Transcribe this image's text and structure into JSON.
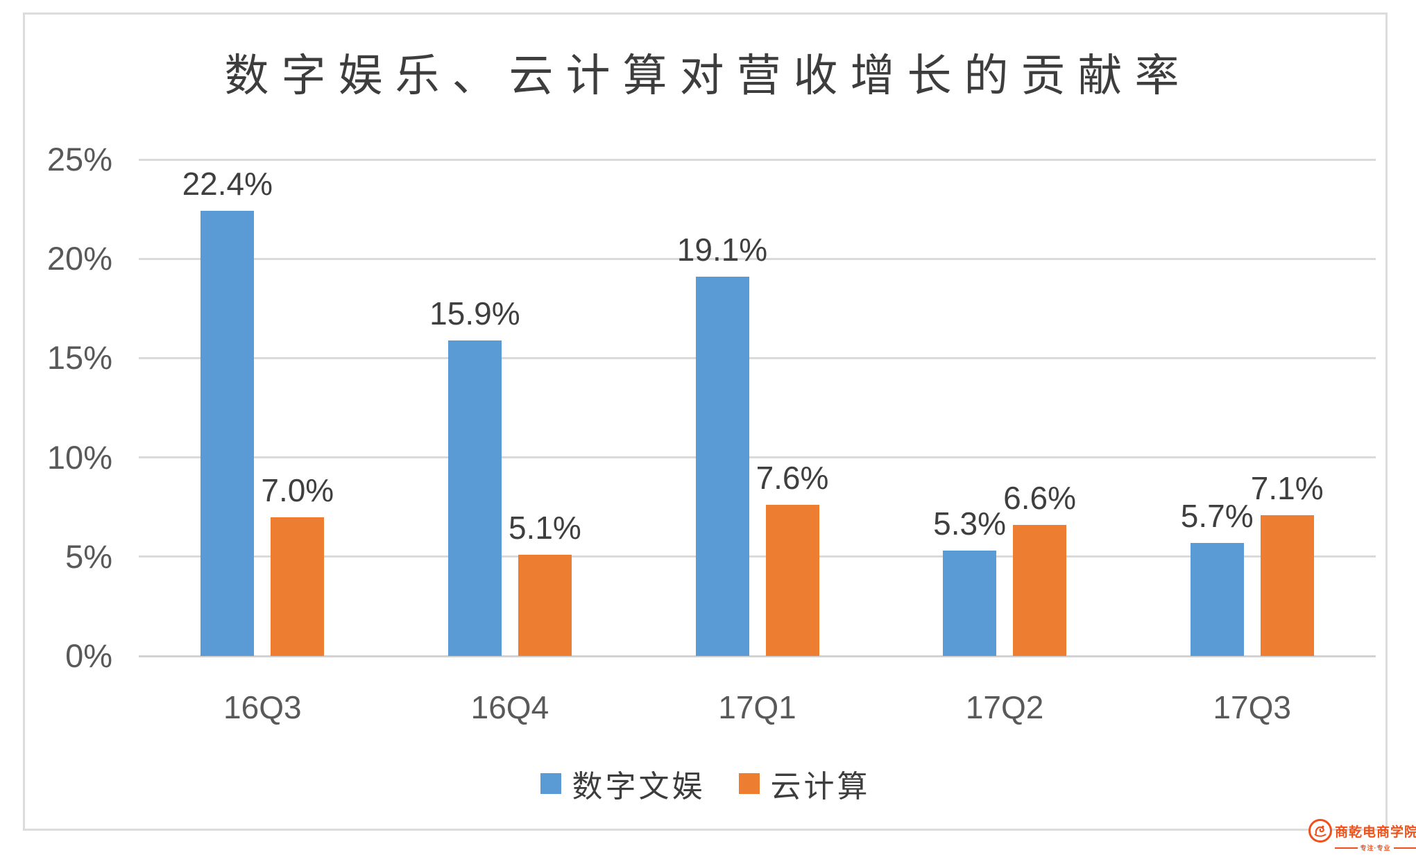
{
  "chart_data": {
    "type": "bar",
    "title": "数字娱乐、云计算对营收增长的贡献率",
    "categories": [
      "16Q3",
      "16Q4",
      "17Q1",
      "17Q2",
      "17Q3"
    ],
    "series": [
      {
        "name": "数字文娱",
        "color": "#5B9BD5",
        "values": [
          22.4,
          15.9,
          19.1,
          5.3,
          5.7
        ],
        "labels": [
          "22.4%",
          "15.9%",
          "19.1%",
          "5.3%",
          "5.7%"
        ]
      },
      {
        "name": "云计算",
        "color": "#ED7D31",
        "values": [
          7.0,
          5.1,
          7.6,
          6.6,
          7.1
        ],
        "labels": [
          "7.0%",
          "5.1%",
          "7.6%",
          "6.6%",
          "7.1%"
        ]
      }
    ],
    "xlabel": "",
    "ylabel": "",
    "ylim": [
      0,
      25
    ],
    "yticks": [
      {
        "value": 0,
        "label": "0%"
      },
      {
        "value": 5,
        "label": "5%"
      },
      {
        "value": 10,
        "label": "10%"
      },
      {
        "value": 15,
        "label": "15%"
      },
      {
        "value": 20,
        "label": "20%"
      },
      {
        "value": 25,
        "label": "25%"
      }
    ],
    "grid": true,
    "legend_position": "bottom"
  },
  "watermark": {
    "name": "商乾电商学院",
    "tagline": "专注·专业",
    "color": "#F0501A"
  },
  "colors": {
    "title": "#3D3D3D",
    "axis_text": "#595959",
    "data_label": "#3F3F3F",
    "gridline": "#DADADA",
    "baseline": "#D2D2D2",
    "frame_border": "#DCDCDC"
  }
}
